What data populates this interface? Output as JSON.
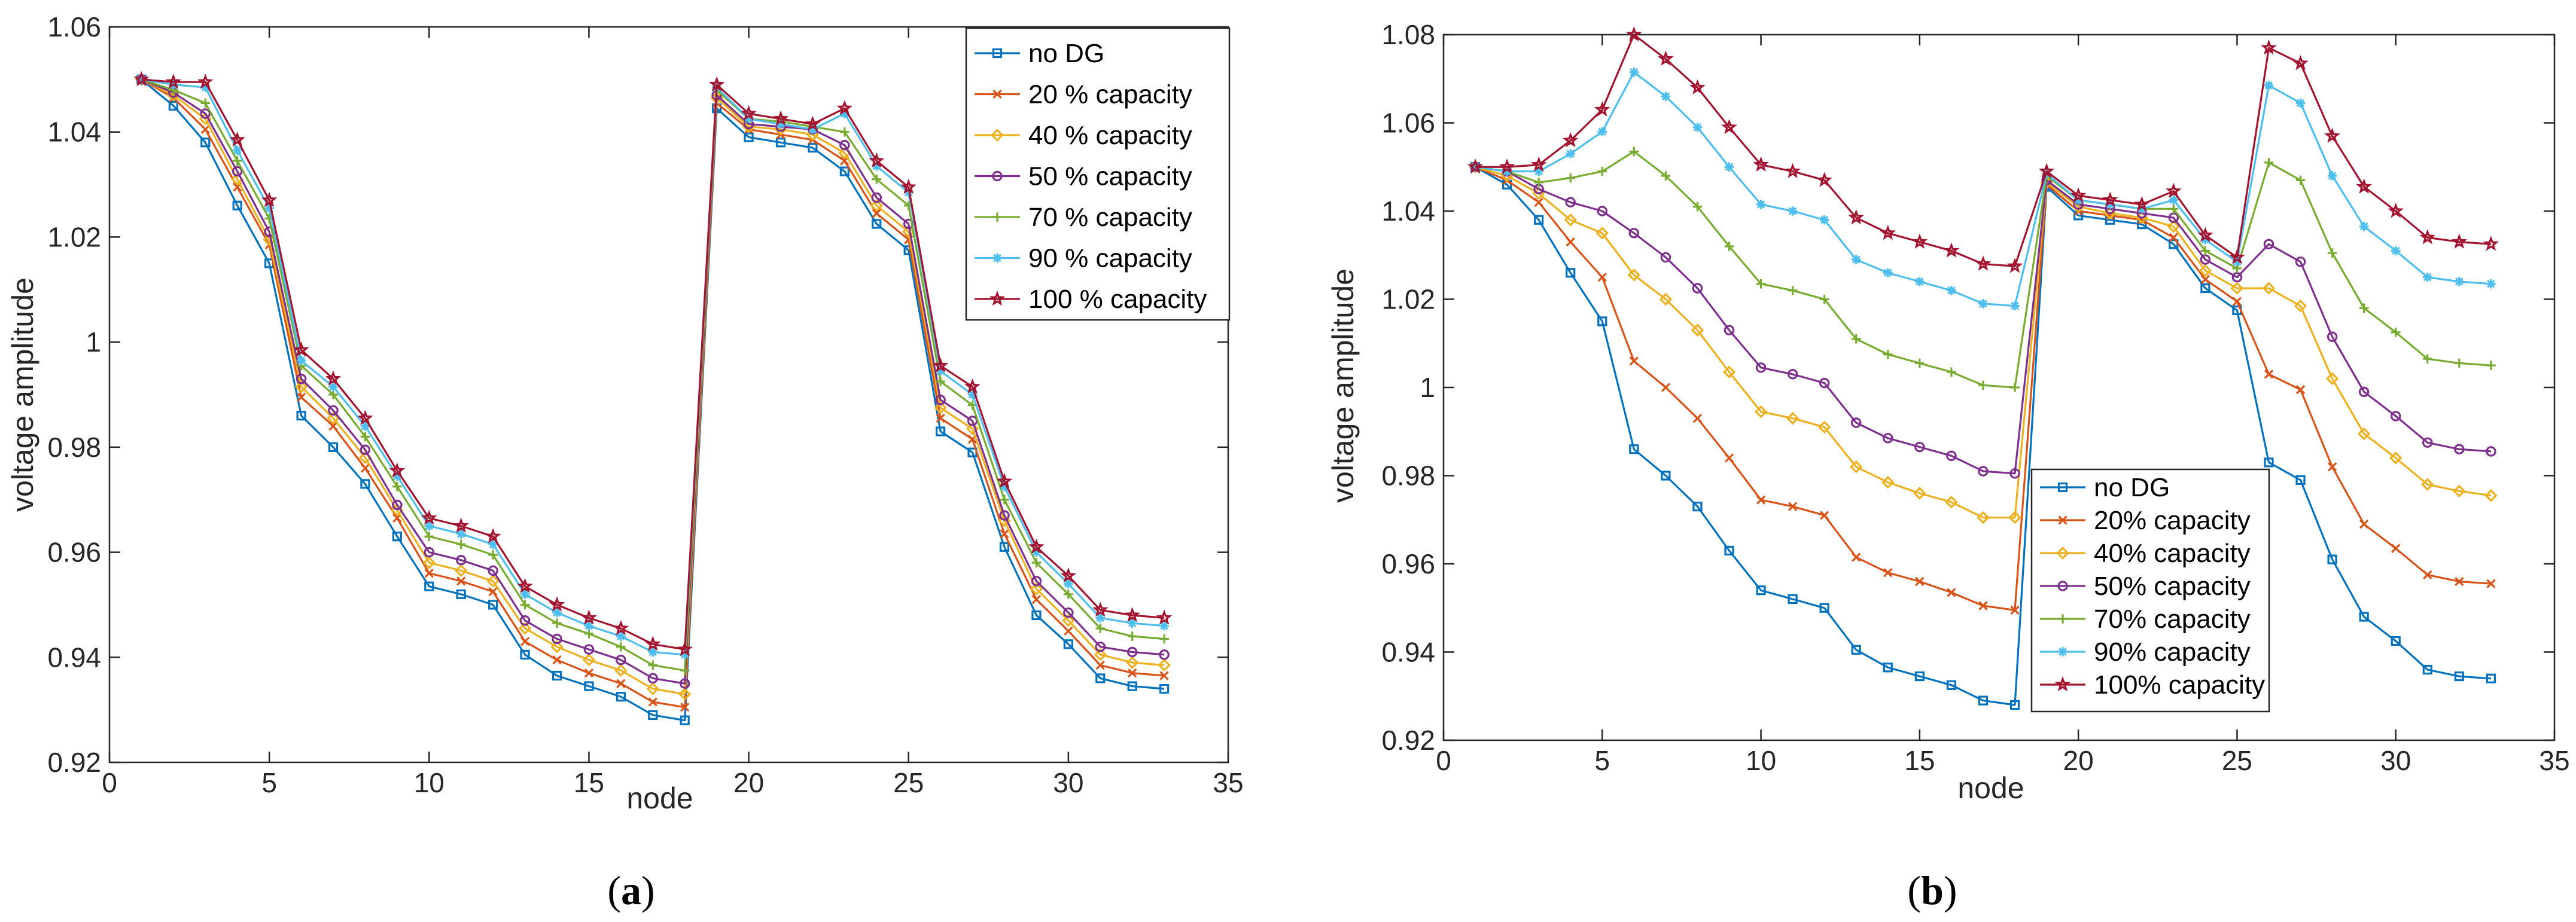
{
  "chart_data": [
    {
      "type": "line",
      "caption": {
        "open": "(",
        "letter": "a",
        "close": ")"
      },
      "title": "",
      "xlabel": "node",
      "ylabel": "voltage amplitude",
      "xlim": [
        0,
        35
      ],
      "ylim": [
        0.92,
        1.06
      ],
      "xticks": [
        0,
        5,
        10,
        15,
        20,
        25,
        30,
        35
      ],
      "yticks": [
        0.92,
        0.94,
        0.96,
        0.98,
        1,
        1.02,
        1.04,
        1.06
      ],
      "xtick_labels": [
        "0",
        "5",
        "10",
        "15",
        "20",
        "25",
        "30",
        "35"
      ],
      "ytick_labels": [
        "0.92",
        "0.94",
        "0.96",
        "0.98",
        "1",
        "1.02",
        "1.04",
        "1.06"
      ],
      "legend_position": "top-right",
      "x": [
        1,
        2,
        3,
        4,
        5,
        6,
        7,
        8,
        9,
        10,
        11,
        12,
        13,
        14,
        15,
        16,
        17,
        18,
        19,
        20,
        21,
        22,
        23,
        24,
        25,
        26,
        27,
        28,
        29,
        30,
        31,
        32,
        33
      ],
      "series": [
        {
          "name": "no DG",
          "color": "#0072BD",
          "marker": "square",
          "values": [
            1.05,
            1.045,
            1.038,
            1.026,
            1.015,
            0.986,
            0.98,
            0.973,
            0.963,
            0.9535,
            0.952,
            0.95,
            0.9405,
            0.9365,
            0.9345,
            0.9325,
            0.929,
            0.928,
            1.0445,
            1.039,
            1.038,
            1.037,
            1.0325,
            1.0225,
            1.0175,
            0.983,
            0.979,
            0.961,
            0.948,
            0.9425,
            0.936,
            0.9345,
            0.934
          ]
        },
        {
          "name": "20 % capacity",
          "color": "#D95319",
          "marker": "x",
          "values": [
            1.05,
            1.0465,
            1.0405,
            1.0295,
            1.0185,
            0.9895,
            0.984,
            0.976,
            0.9665,
            0.956,
            0.9545,
            0.9525,
            0.943,
            0.9395,
            0.937,
            0.935,
            0.9315,
            0.9305,
            1.0455,
            1.0405,
            1.0395,
            1.0385,
            1.0345,
            1.0245,
            1.0195,
            0.9855,
            0.9815,
            0.9635,
            0.951,
            0.945,
            0.9385,
            0.937,
            0.9365
          ]
        },
        {
          "name": "40 % capacity",
          "color": "#EDB120",
          "marker": "diamond",
          "values": [
            1.05,
            1.047,
            1.0425,
            1.031,
            1.0195,
            0.9915,
            0.9855,
            0.978,
            0.968,
            0.958,
            0.9565,
            0.9545,
            0.9455,
            0.942,
            0.9395,
            0.9375,
            0.934,
            0.933,
            1.0465,
            1.041,
            1.0405,
            1.0395,
            1.036,
            1.026,
            1.021,
            0.9875,
            0.9835,
            0.966,
            0.953,
            0.947,
            0.9405,
            0.939,
            0.9385
          ]
        },
        {
          "name": "50 % capacity",
          "color": "#7E2F8E",
          "marker": "circle",
          "values": [
            1.05,
            1.0475,
            1.0435,
            1.0325,
            1.021,
            0.993,
            0.987,
            0.9795,
            0.969,
            0.96,
            0.9585,
            0.9565,
            0.947,
            0.9435,
            0.9415,
            0.9395,
            0.936,
            0.935,
            1.047,
            1.0415,
            1.041,
            1.0405,
            1.0375,
            1.0275,
            1.0225,
            0.989,
            0.985,
            0.967,
            0.9545,
            0.9485,
            0.942,
            0.941,
            0.9405
          ]
        },
        {
          "name": "70 % capacity",
          "color": "#77AC30",
          "marker": "plus",
          "values": [
            1.05,
            1.048,
            1.0455,
            1.0345,
            1.0235,
            0.9955,
            0.99,
            0.982,
            0.9725,
            0.963,
            0.9615,
            0.9595,
            0.95,
            0.9465,
            0.9445,
            0.942,
            0.9385,
            0.9375,
            1.048,
            1.0425,
            1.042,
            1.041,
            1.04,
            1.031,
            1.026,
            0.9925,
            0.988,
            0.97,
            0.958,
            0.952,
            0.9455,
            0.944,
            0.9435
          ]
        },
        {
          "name": "90 % capacity",
          "color": "#4DBEEE",
          "marker": "asterisk",
          "values": [
            1.05,
            1.049,
            1.0485,
            1.0365,
            1.0255,
            0.9965,
            0.9915,
            0.984,
            0.9745,
            0.965,
            0.9635,
            0.9615,
            0.952,
            0.9485,
            0.946,
            0.944,
            0.941,
            0.9405,
            1.0485,
            1.0425,
            1.0415,
            1.0405,
            1.0435,
            1.0335,
            1.0285,
            0.9945,
            0.99,
            0.9725,
            0.96,
            0.954,
            0.9475,
            0.9465,
            0.946
          ]
        },
        {
          "name": "100 % capacity",
          "color": "#A2142F",
          "marker": "star",
          "values": [
            1.05,
            1.0495,
            1.0495,
            1.0385,
            1.027,
            0.9985,
            0.993,
            0.9855,
            0.9755,
            0.9665,
            0.965,
            0.963,
            0.9535,
            0.95,
            0.9475,
            0.9455,
            0.9425,
            0.9415,
            1.049,
            1.0435,
            1.0425,
            1.0415,
            1.0445,
            1.0345,
            1.0295,
            0.9955,
            0.9915,
            0.9735,
            0.961,
            0.9555,
            0.949,
            0.948,
            0.9475
          ]
        }
      ]
    },
    {
      "type": "line",
      "caption": {
        "open": "(",
        "letter": "b",
        "close": ")"
      },
      "title": "",
      "xlabel": "node",
      "ylabel": "voltage amplitude",
      "xlim": [
        0,
        35
      ],
      "ylim": [
        0.92,
        1.08
      ],
      "xticks": [
        0,
        5,
        10,
        15,
        20,
        25,
        30,
        35
      ],
      "yticks": [
        0.92,
        0.94,
        0.96,
        0.98,
        1,
        1.02,
        1.04,
        1.06,
        1.08
      ],
      "xtick_labels": [
        "0",
        "5",
        "10",
        "15",
        "20",
        "25",
        "30",
        "35"
      ],
      "ytick_labels": [
        "0.92",
        "0.94",
        "0.96",
        "0.98",
        "1",
        "1.02",
        "1.04",
        "1.06",
        "1.08"
      ],
      "legend_position": "bottom-center",
      "x": [
        1,
        2,
        3,
        4,
        5,
        6,
        7,
        8,
        9,
        10,
        11,
        12,
        13,
        14,
        15,
        16,
        17,
        18,
        19,
        20,
        21,
        22,
        23,
        24,
        25,
        26,
        27,
        28,
        29,
        30,
        31,
        32,
        33
      ],
      "series": [
        {
          "name": "no DG",
          "color": "#0072BD",
          "marker": "square",
          "values": [
            1.05,
            1.046,
            1.038,
            1.026,
            1.015,
            0.986,
            0.98,
            0.973,
            0.963,
            0.954,
            0.952,
            0.95,
            0.9405,
            0.9365,
            0.9345,
            0.9325,
            0.929,
            0.928,
            1.0455,
            1.039,
            1.038,
            1.037,
            1.0325,
            1.0225,
            1.0175,
            0.983,
            0.979,
            0.961,
            0.948,
            0.9425,
            0.936,
            0.9345,
            0.934
          ]
        },
        {
          "name": "20% capacity",
          "color": "#D95319",
          "marker": "x",
          "values": [
            1.05,
            1.047,
            1.042,
            1.033,
            1.025,
            1.006,
            1.0,
            0.993,
            0.984,
            0.9745,
            0.973,
            0.971,
            0.9615,
            0.958,
            0.956,
            0.9535,
            0.9505,
            0.9495,
            1.046,
            1.04,
            1.039,
            1.038,
            1.034,
            1.0245,
            1.0195,
            1.003,
            0.9995,
            0.982,
            0.969,
            0.9635,
            0.9575,
            0.956,
            0.9555
          ]
        },
        {
          "name": "40% capacity",
          "color": "#EDB120",
          "marker": "diamond",
          "values": [
            1.05,
            1.048,
            1.044,
            1.038,
            1.035,
            1.0255,
            1.02,
            1.013,
            1.0035,
            0.9945,
            0.993,
            0.991,
            0.982,
            0.9785,
            0.976,
            0.974,
            0.9705,
            0.9705,
            1.0465,
            1.041,
            1.0395,
            1.0385,
            1.0365,
            1.0265,
            1.0225,
            1.0225,
            1.0185,
            1.002,
            0.9895,
            0.984,
            0.978,
            0.9765,
            0.9755
          ]
        },
        {
          "name": "50% capacity",
          "color": "#7E2F8E",
          "marker": "circle",
          "values": [
            1.05,
            1.049,
            1.045,
            1.042,
            1.04,
            1.035,
            1.0295,
            1.0225,
            1.013,
            1.0045,
            1.003,
            1.001,
            0.992,
            0.9885,
            0.9865,
            0.9845,
            0.981,
            0.9805,
            1.047,
            1.0415,
            1.0405,
            1.0395,
            1.0385,
            1.029,
            1.025,
            1.0325,
            1.0285,
            1.0115,
            0.999,
            0.9935,
            0.9875,
            0.986,
            0.9855
          ]
        },
        {
          "name": "70% capacity",
          "color": "#77AC30",
          "marker": "plus",
          "values": [
            1.05,
            1.049,
            1.0465,
            1.0475,
            1.049,
            1.0535,
            1.048,
            1.041,
            1.032,
            1.0235,
            1.022,
            1.02,
            1.011,
            1.0075,
            1.0055,
            1.0035,
            1.0005,
            1.0,
            1.048,
            1.0425,
            1.0415,
            1.0405,
            1.0405,
            1.031,
            1.027,
            1.051,
            1.047,
            1.0305,
            1.018,
            1.0125,
            1.0065,
            1.0055,
            1.005
          ]
        },
        {
          "name": "90% capacity",
          "color": "#4DBEEE",
          "marker": "asterisk",
          "values": [
            1.05,
            1.049,
            1.049,
            1.053,
            1.058,
            1.0715,
            1.066,
            1.059,
            1.05,
            1.0415,
            1.04,
            1.038,
            1.029,
            1.026,
            1.024,
            1.022,
            1.019,
            1.0185,
            1.0485,
            1.0425,
            1.0415,
            1.0405,
            1.0425,
            1.0335,
            1.0285,
            1.0685,
            1.0645,
            1.048,
            1.0365,
            1.031,
            1.025,
            1.024,
            1.0235
          ]
        },
        {
          "name": "100% capacity",
          "color": "#A2142F",
          "marker": "star",
          "values": [
            1.05,
            1.05,
            1.0505,
            1.056,
            1.063,
            1.08,
            1.0745,
            1.068,
            1.059,
            1.0505,
            1.049,
            1.047,
            1.0385,
            1.035,
            1.033,
            1.031,
            1.028,
            1.0275,
            1.049,
            1.0435,
            1.0425,
            1.0415,
            1.0445,
            1.0345,
            1.0295,
            1.077,
            1.0735,
            1.057,
            1.0455,
            1.04,
            1.034,
            1.033,
            1.0325
          ]
        }
      ]
    }
  ]
}
